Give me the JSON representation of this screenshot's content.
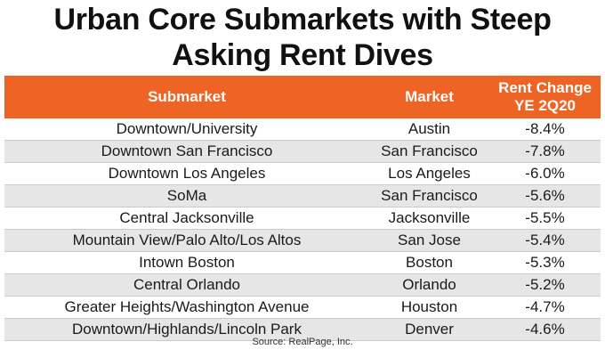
{
  "title_line1": "Urban Core Submarkets with Steep",
  "title_line2": "Asking Rent Dives",
  "columns": {
    "submarket": "Submarket",
    "market": "Market",
    "rent_change_line1": "Rent Change",
    "rent_change_line2": "YE 2Q20"
  },
  "rows": [
    {
      "submarket": "Downtown/University",
      "market": "Austin",
      "change": "-8.4%"
    },
    {
      "submarket": "Downtown San Francisco",
      "market": "San Francisco",
      "change": "-7.8%"
    },
    {
      "submarket": "Downtown Los Angeles",
      "market": "Los Angeles",
      "change": "-6.0%"
    },
    {
      "submarket": "SoMa",
      "market": "San Francisco",
      "change": "-5.6%"
    },
    {
      "submarket": "Central Jacksonville",
      "market": "Jacksonville",
      "change": "-5.5%"
    },
    {
      "submarket": "Mountain View/Palo Alto/Los Altos",
      "market": "San Jose",
      "change": "-5.4%"
    },
    {
      "submarket": "Intown Boston",
      "market": "Boston",
      "change": "-5.3%"
    },
    {
      "submarket": "Central Orlando",
      "market": "Orlando",
      "change": "-5.2%"
    },
    {
      "submarket": "Greater Heights/Washington Avenue",
      "market": "Houston",
      "change": "-4.7%"
    },
    {
      "submarket": "Downtown/Highlands/Lincoln Park",
      "market": "Denver",
      "change": "-4.6%"
    }
  ],
  "source": "Source: RealPage, Inc.",
  "colors": {
    "header_bg": "#ee6425",
    "header_text": "#ffffff",
    "stripe": "#e6e6e6"
  }
}
